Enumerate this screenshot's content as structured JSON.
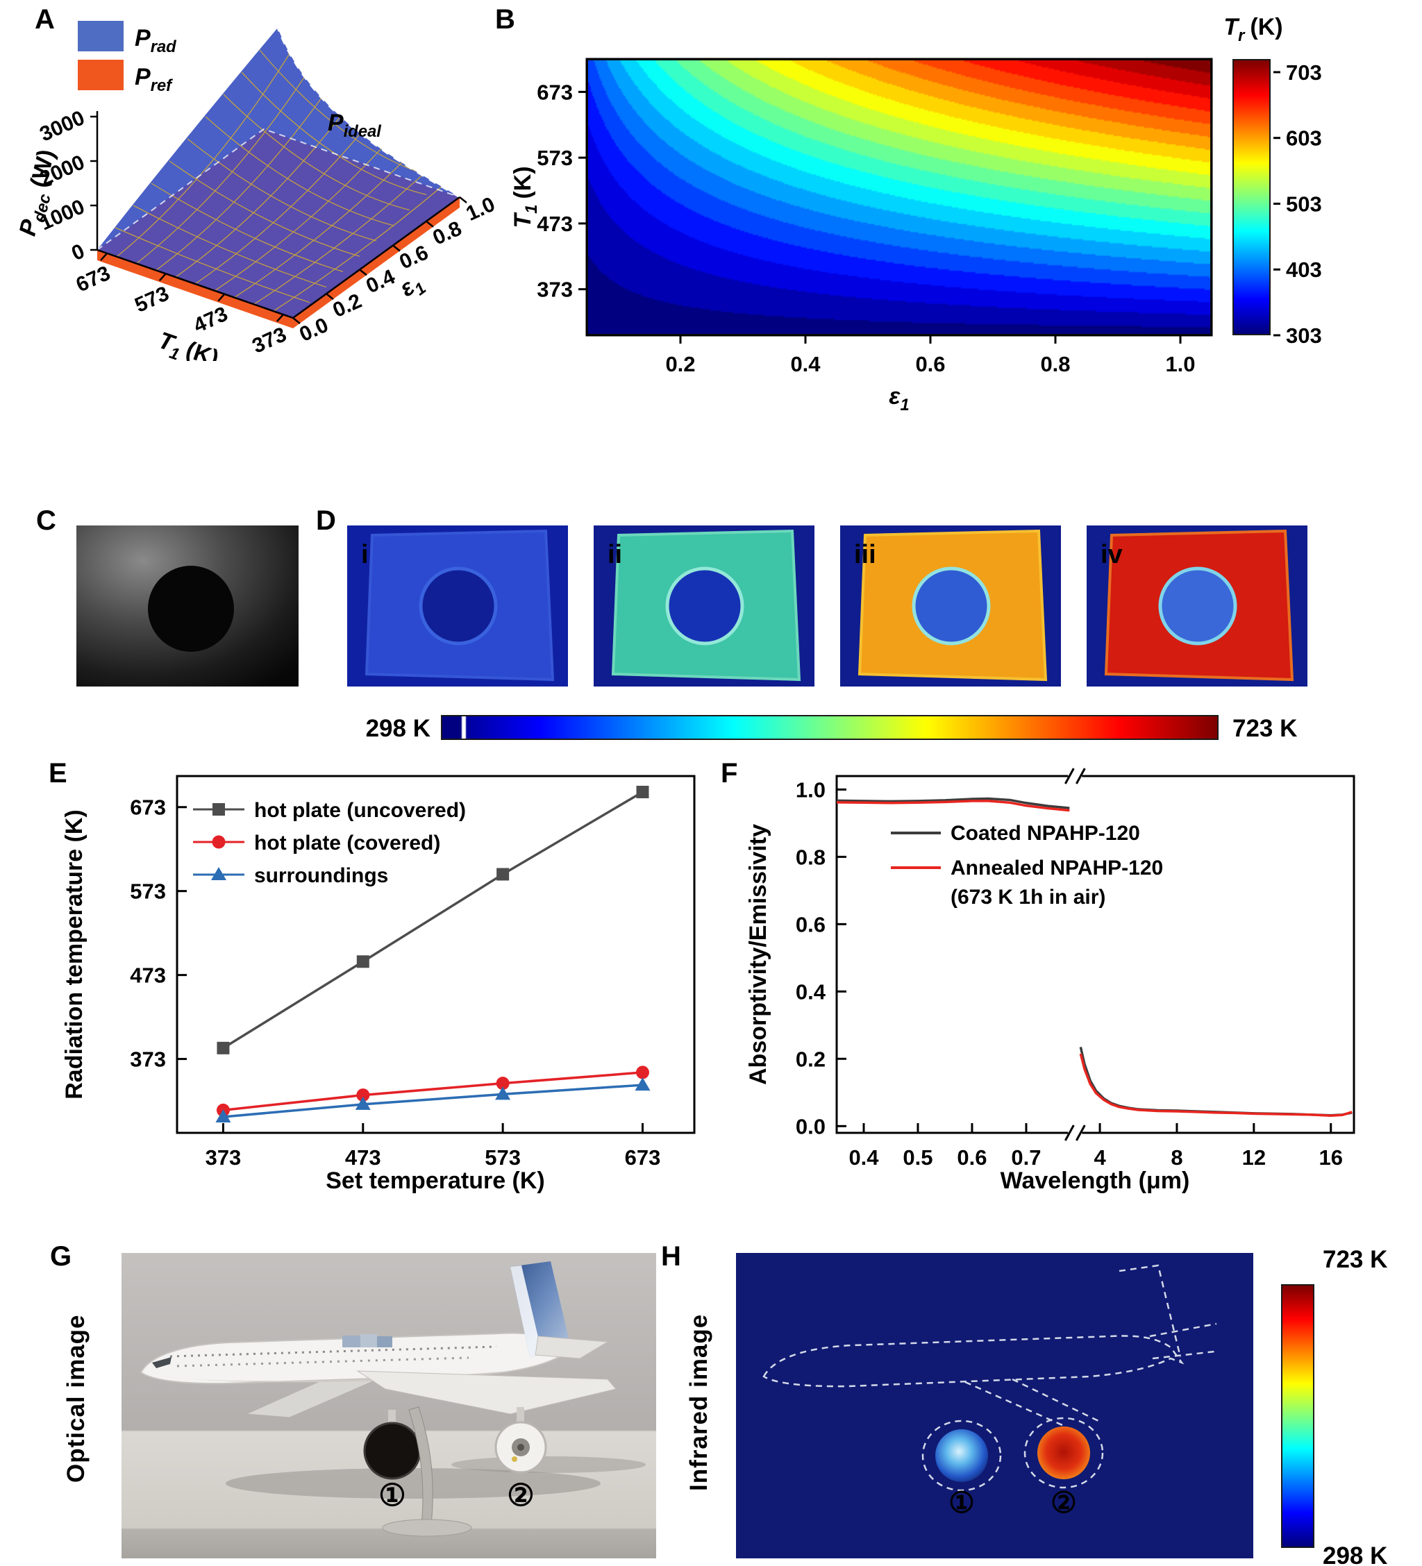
{
  "panels": {
    "a": "A",
    "b": "B",
    "c": "C",
    "d": "D",
    "e": "E",
    "f": "F",
    "g": "G",
    "h": "H"
  },
  "panel_d": {
    "images": [
      {
        "tag": "i",
        "bg": "#0f21a2",
        "plate": "#2b4ad0",
        "disk": "#101f96",
        "rim": "#3a62de",
        "edge": "#3556d6"
      },
      {
        "tag": "ii",
        "bg": "#0f1d8e",
        "plate": "#3ec4a6",
        "disk": "#1632b4",
        "rim": "#92e8d8",
        "edge": "#6cd8bc"
      },
      {
        "tag": "iii",
        "bg": "#0f1d8e",
        "plate": "#f2a018",
        "disk": "#2f5cd2",
        "rim": "#92e2e0",
        "edge": "#f6c030"
      },
      {
        "tag": "iv",
        "bg": "#0f1d8e",
        "plate": "#d41c10",
        "disk": "#3a68d8",
        "rim": "#80d4ea",
        "edge": "#e86c20"
      }
    ],
    "scale_left": "298 K",
    "scale_right": "723 K"
  },
  "panel_g": {
    "side_label": "Optical image",
    "marker1": "①",
    "marker2": "②"
  },
  "panel_h": {
    "side_label": "Infrared image",
    "marker1": "①",
    "marker2": "②",
    "scale_top": "723 K",
    "scale_bottom": "298 K"
  },
  "chart_data": [
    {
      "id": "panel_a",
      "type": "surface3d",
      "series": [
        {
          "name": "P_rad",
          "base": "P",
          "subl": "rad",
          "color": "#4f6dc2"
        },
        {
          "name": "P_ref",
          "base": "P",
          "subl": "ref",
          "color": "#f0571e"
        }
      ],
      "annotation": {
        "name": "P_ideal",
        "base": "P",
        "subl": "ideal"
      },
      "z": {
        "base": "P",
        "subl": "dec",
        "unit": "(W)",
        "ticks": [
          "0",
          "1000",
          "2000",
          "3000"
        ],
        "max_W": 3000
      },
      "x": {
        "base": "T",
        "subl": "1",
        "unit": "(K)",
        "ticks": [
          "673",
          "573",
          "473",
          "373"
        ]
      },
      "y": {
        "base": "ε",
        "subl": "1",
        "ticks": [
          "0.0",
          "0.2",
          "0.4",
          "0.6",
          "0.8",
          "1.0"
        ]
      },
      "surface_color": "#4a60c6",
      "base_color": "#5c4aa8",
      "grid_color": "#c8a43c"
    },
    {
      "id": "panel_b",
      "type": "heatmap",
      "x": {
        "base": "ε",
        "subl": "1",
        "min": 0.05,
        "max": 1.05,
        "ticks": [
          0.2,
          0.4,
          0.6,
          0.8,
          1.0
        ]
      },
      "y": {
        "base": "T",
        "subl": "1",
        "unit": "(K)",
        "min": 303,
        "max": 723,
        "ticks": [
          673,
          573,
          473,
          373
        ]
      },
      "colorbar": {
        "base": "T",
        "subl": "r",
        "unit": "(K)",
        "min": 303,
        "max": 723,
        "ticks": [
          703,
          603,
          503,
          403,
          303
        ]
      },
      "ambient_K": 303,
      "value_model": "Tr = (Ta^4 + e1*(T1^4 - Ta^4))^(1/4)",
      "levels": 21
    },
    {
      "id": "panel_e",
      "type": "line",
      "x": {
        "label": "Set temperature (K)",
        "min": 340,
        "max": 710,
        "ticks": [
          373,
          473,
          573,
          673
        ]
      },
      "y": {
        "label": "Radiation temperature (K)",
        "min": 285,
        "max": 710,
        "ticks": [
          373,
          473,
          573,
          673
        ]
      },
      "series": [
        {
          "name": "hot plate (uncovered)",
          "marker": "square",
          "color": "#4d4d4d",
          "x": [
            373,
            473,
            573,
            673
          ],
          "y": [
            386,
            489,
            593,
            691
          ]
        },
        {
          "name": "hot plate (covered)",
          "marker": "circle",
          "color": "#e32227",
          "x": [
            373,
            473,
            573,
            673
          ],
          "y": [
            312,
            330,
            344,
            357
          ]
        },
        {
          "name": "surroundings",
          "marker": "triangle",
          "color": "#2c6db4",
          "x": [
            373,
            473,
            573,
            673
          ],
          "y": [
            304,
            319,
            331,
            342
          ]
        }
      ]
    },
    {
      "id": "panel_f",
      "type": "line-broken-x",
      "y": {
        "label": "Absorptivity/Emissivity",
        "min": -0.02,
        "max": 1.04,
        "ticks": [
          1.0,
          0.8,
          0.6,
          0.4,
          0.2,
          0.0
        ]
      },
      "x_label": "Wavelength (μm)",
      "segments": [
        {
          "min": 0.35,
          "max": 0.78,
          "ticks": [
            0.4,
            0.5,
            0.6,
            0.7
          ],
          "width_frac": 0.46
        },
        {
          "min": 3,
          "max": 17.2,
          "ticks": [
            4,
            8,
            12,
            16
          ],
          "width_frac": 0.54
        }
      ],
      "legend_lines": [
        "Coated NPAHP-120",
        "Annealed NPAHP-120",
        "(673 K 1h in air)"
      ],
      "series": [
        {
          "name": "Coated NPAHP-120",
          "color": "#3c3c3c",
          "seg1_x": [
            0.35,
            0.4,
            0.45,
            0.5,
            0.55,
            0.6,
            0.63,
            0.67,
            0.7,
            0.74,
            0.78
          ],
          "seg1_y": [
            0.967,
            0.966,
            0.965,
            0.966,
            0.968,
            0.972,
            0.973,
            0.969,
            0.96,
            0.951,
            0.945
          ],
          "seg2_x": [
            3,
            3.2,
            3.5,
            3.8,
            4.2,
            4.6,
            5,
            5.5,
            6,
            7,
            8,
            9,
            10,
            11,
            12,
            13,
            14,
            15,
            16,
            16.6,
            17.1
          ],
          "seg2_y": [
            0.235,
            0.185,
            0.135,
            0.105,
            0.082,
            0.068,
            0.06,
            0.054,
            0.05,
            0.047,
            0.046,
            0.044,
            0.042,
            0.04,
            0.038,
            0.037,
            0.036,
            0.034,
            0.032,
            0.034,
            0.04
          ]
        },
        {
          "name": "Annealed NPAHP-120 (673 K 1h in air)",
          "color": "#e8251f",
          "seg1_x": [
            0.35,
            0.4,
            0.45,
            0.5,
            0.55,
            0.6,
            0.63,
            0.67,
            0.7,
            0.74,
            0.78
          ],
          "seg1_y": [
            0.962,
            0.961,
            0.96,
            0.961,
            0.963,
            0.966,
            0.966,
            0.961,
            0.952,
            0.944,
            0.938
          ],
          "seg2_x": [
            3,
            3.2,
            3.5,
            3.8,
            4.2,
            4.6,
            5,
            5.5,
            6,
            7,
            8,
            9,
            10,
            11,
            12,
            13,
            14,
            15,
            16,
            16.6,
            17.1
          ],
          "seg2_y": [
            0.215,
            0.17,
            0.125,
            0.098,
            0.078,
            0.065,
            0.057,
            0.052,
            0.048,
            0.045,
            0.044,
            0.042,
            0.04,
            0.039,
            0.037,
            0.036,
            0.035,
            0.034,
            0.031,
            0.033,
            0.042
          ]
        }
      ]
    }
  ]
}
